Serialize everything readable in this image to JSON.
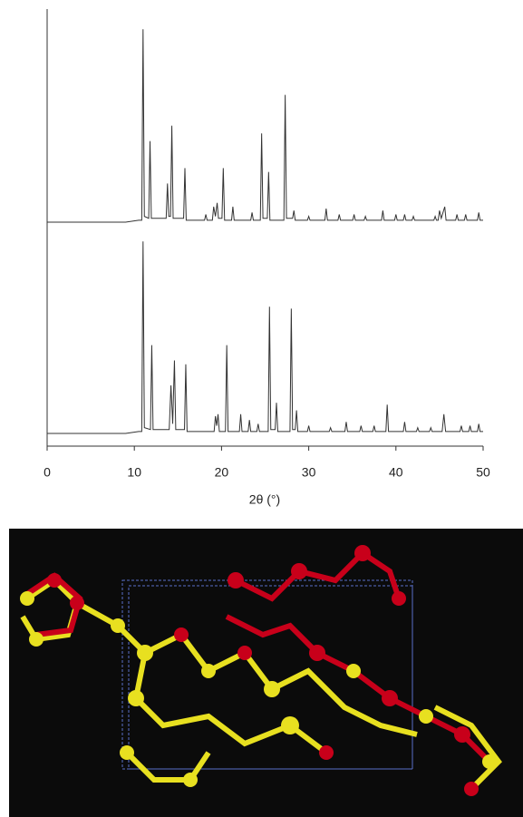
{
  "chart_data": [
    {
      "type": "line",
      "color": "#333333",
      "xlim": [
        0,
        50
      ],
      "ylim": [
        0,
        102
      ],
      "x": [
        0,
        9,
        10.5,
        10.85,
        11.0,
        11.15,
        11.65,
        11.8,
        11.95,
        13.65,
        13.8,
        13.95,
        14.15,
        14.3,
        14.45,
        15.65,
        15.8,
        15.95,
        18.05,
        18.2,
        18.35,
        18.95,
        19.1,
        19.3,
        19.5,
        19.65,
        20.05,
        20.2,
        20.35,
        21.15,
        21.3,
        21.45,
        23.35,
        23.5,
        23.65,
        24.45,
        24.6,
        24.75,
        25.25,
        25.4,
        25.55,
        27.15,
        27.3,
        27.45,
        28.15,
        28.3,
        28.45,
        29.85,
        30,
        30.15,
        31.85,
        32,
        32.15,
        33.35,
        33.5,
        33.65,
        35.05,
        35.2,
        35.35,
        36.35,
        36.5,
        36.65,
        38.35,
        38.5,
        38.65,
        39.85,
        40,
        40.15,
        40.85,
        41,
        41.15,
        41.85,
        42,
        42.15,
        44.35,
        44.5,
        44.65,
        44.85,
        45,
        45.2,
        45.6,
        45.75,
        46.85,
        47,
        47.15,
        47.85,
        48,
        48.15,
        49.35,
        49.5,
        49.65,
        50
      ],
      "values": [
        0,
        0,
        1,
        1,
        100,
        3,
        2,
        42,
        2,
        2,
        20,
        3,
        3,
        50,
        2,
        2,
        28,
        1,
        1,
        4,
        1,
        1,
        8,
        3,
        10,
        2,
        2,
        28,
        1,
        1,
        8,
        1,
        1,
        5,
        1,
        1,
        46,
        2,
        2,
        26,
        1,
        1,
        66,
        2,
        2,
        6,
        1,
        1,
        3,
        1,
        1,
        7,
        1,
        1,
        4,
        1,
        1,
        4,
        1,
        1,
        3,
        1,
        1,
        6,
        1,
        1,
        4,
        1,
        1,
        4,
        1,
        1,
        3,
        1,
        1,
        3,
        1,
        1,
        6,
        2,
        8,
        1,
        1,
        4,
        1,
        1,
        4,
        1,
        1,
        5,
        1,
        1
      ]
    },
    {
      "type": "line",
      "color": "#333333",
      "xlim": [
        0,
        50
      ],
      "ylim": [
        0,
        102
      ],
      "xticks": [
        0,
        10,
        20,
        30,
        40,
        50
      ],
      "xlabel": "2θ (°)",
      "x": [
        0,
        9,
        10.5,
        10.85,
        11.0,
        11.15,
        11.85,
        12.0,
        12.15,
        14.0,
        14.2,
        14.4,
        14.6,
        14.75,
        15.75,
        15.9,
        16.05,
        19.15,
        19.3,
        19.45,
        19.6,
        19.75,
        20.45,
        20.6,
        20.75,
        22.05,
        22.2,
        22.35,
        23.05,
        23.2,
        23.35,
        24.05,
        24.2,
        24.35,
        25.35,
        25.5,
        25.65,
        26.15,
        26.3,
        26.45,
        27.85,
        28.0,
        28.15,
        28.45,
        28.6,
        28.75,
        29.85,
        30,
        30.15,
        32.35,
        32.5,
        32.65,
        34.15,
        34.3,
        34.45,
        35.85,
        36,
        36.15,
        37.35,
        37.5,
        37.65,
        38.85,
        39,
        39.15,
        40.85,
        41,
        41.15,
        42.35,
        42.5,
        42.65,
        43.85,
        44,
        44.15,
        45.3,
        45.5,
        45.7,
        47.35,
        47.5,
        47.65,
        48.35,
        48.5,
        48.65,
        49.35,
        49.5,
        49.65,
        50
      ],
      "values": [
        0,
        0,
        1,
        1,
        100,
        3,
        2,
        46,
        2,
        2,
        25,
        5,
        38,
        2,
        2,
        36,
        1,
        1,
        9,
        4,
        10,
        1,
        1,
        46,
        1,
        1,
        10,
        1,
        1,
        7,
        1,
        1,
        5,
        1,
        1,
        66,
        2,
        2,
        16,
        1,
        1,
        65,
        2,
        2,
        12,
        1,
        1,
        4,
        1,
        1,
        3,
        1,
        1,
        6,
        1,
        1,
        4,
        1,
        1,
        4,
        1,
        1,
        15,
        1,
        1,
        6,
        1,
        1,
        3,
        1,
        1,
        3,
        1,
        1,
        10,
        1,
        1,
        4,
        1,
        1,
        4,
        1,
        1,
        5,
        1,
        1
      ]
    }
  ]
}
